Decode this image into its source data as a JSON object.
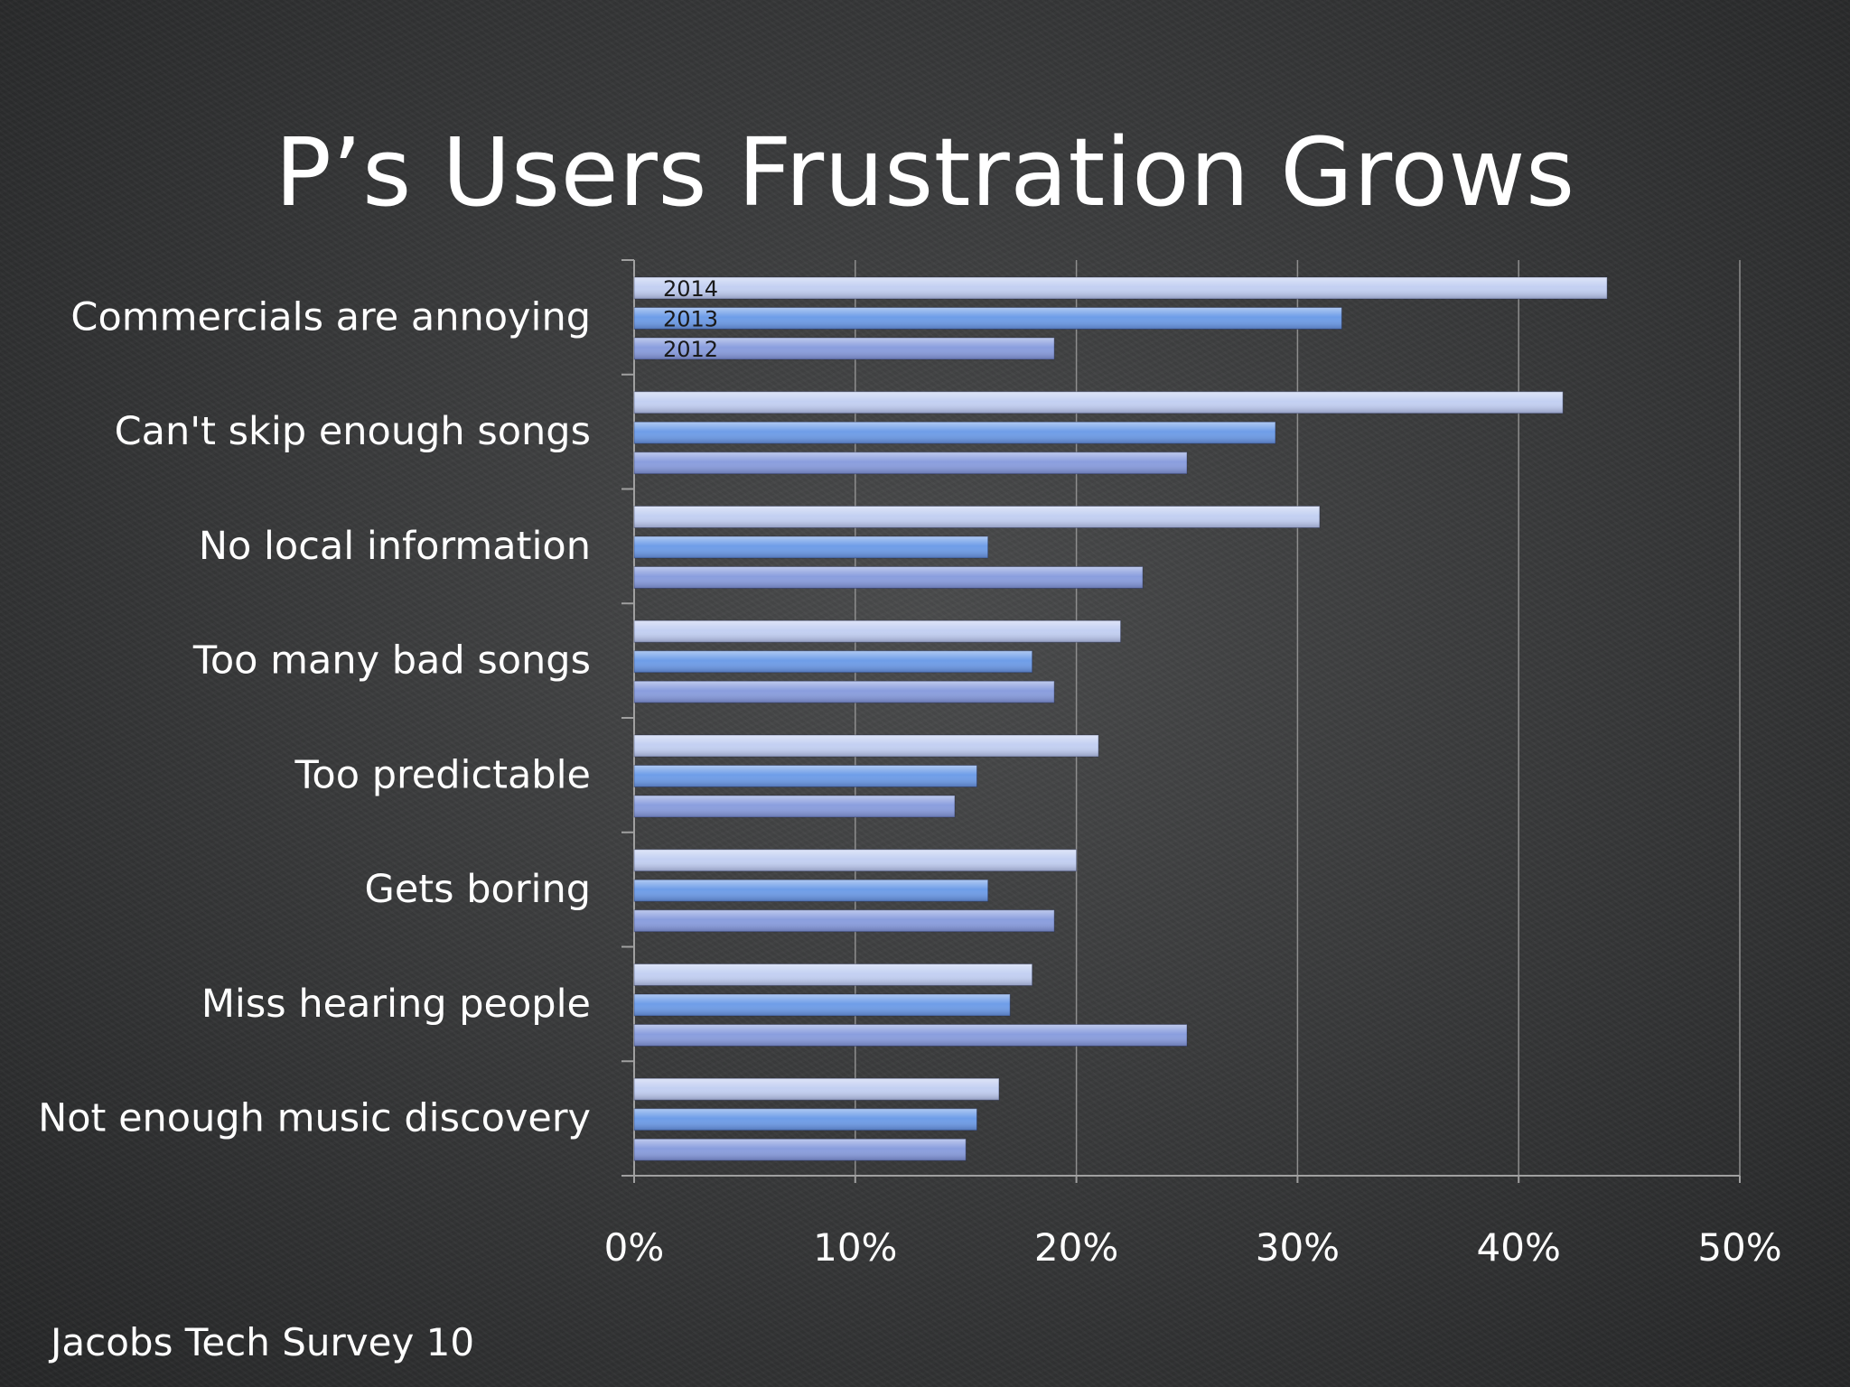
{
  "title": "P’s Users Frustration Grows",
  "footer": "Jacobs Tech Survey 10",
  "colors": {
    "series_2014": "#c3d0f2",
    "series_2013": "#6e9de8",
    "series_2012": "#8a9ede",
    "grid": "#8e8e8e",
    "text": "#ffffff",
    "series_label": "#1a1a1a"
  },
  "chart_data": {
    "type": "bar",
    "orientation": "horizontal",
    "categories": [
      "Commercials are annoying",
      "Can't skip enough songs",
      "No local information",
      "Too many bad songs",
      "Too predictable",
      "Gets boring",
      "Miss hearing people",
      "Not enough music discovery"
    ],
    "series": [
      {
        "name": "2014",
        "values": [
          44,
          42,
          31,
          22,
          21,
          20,
          18,
          16.5
        ]
      },
      {
        "name": "2013",
        "values": [
          32,
          29,
          16,
          18,
          15.5,
          16,
          17,
          15.5
        ]
      },
      {
        "name": "2012",
        "values": [
          19,
          25,
          23,
          19,
          14.5,
          19,
          25,
          15
        ]
      }
    ],
    "x_ticks": [
      "0%",
      "10%",
      "20%",
      "30%",
      "40%",
      "50%"
    ],
    "xlim": [
      0,
      50
    ],
    "grid": true,
    "series_labels_on_first_group": true
  }
}
